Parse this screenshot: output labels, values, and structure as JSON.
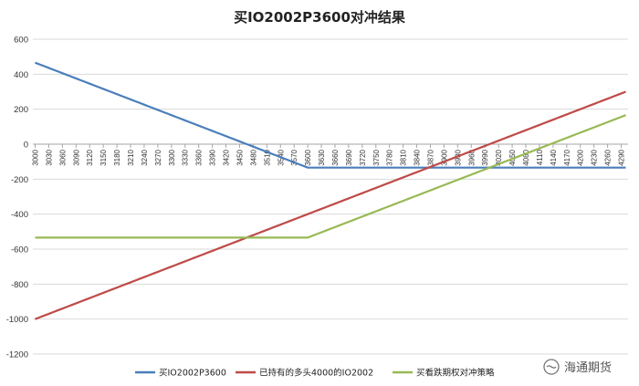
{
  "chart_data": {
    "type": "line",
    "title": "买IO2002P3600对冲结果",
    "xlabel": "",
    "ylabel": "",
    "x_start": 3000,
    "x_step": 10,
    "x_end": 4300,
    "x_tick_step": 30,
    "ylim": [
      -1200,
      600
    ],
    "y_ticks": [
      600,
      400,
      200,
      0,
      -200,
      -400,
      -600,
      -800,
      -1000,
      -1200
    ],
    "grid": "horizontal",
    "legend_position": "bottom",
    "series": [
      {
        "name": "买IO2002P3600",
        "color": "#4a7ebb",
        "kind": "long_put",
        "strike": 3600,
        "premium": 134
      },
      {
        "name": "已持有的多头4000的IO2002",
        "color": "#be4b48",
        "kind": "long_underlying",
        "entry": 4000
      },
      {
        "name": "买看跌期权对冲策略",
        "color": "#98b954",
        "kind": "hedged",
        "strike": 3600,
        "premium": 134
      }
    ]
  },
  "watermark": {
    "text": "海通期货"
  }
}
